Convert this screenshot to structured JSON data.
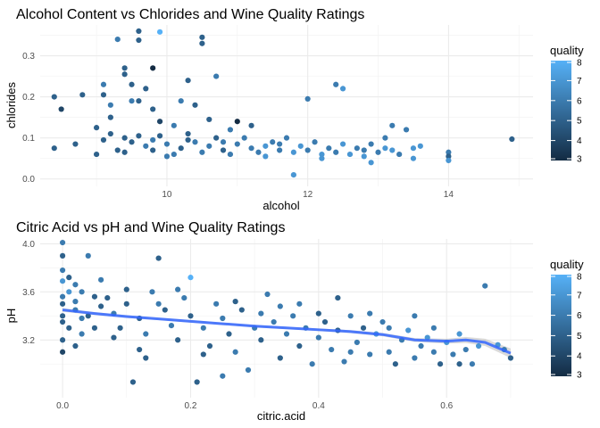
{
  "palette": {
    "low": "#132b43",
    "high": "#56b1f7",
    "smooth": "#3366ff",
    "band": "#bbbbbb"
  },
  "chart_data": [
    {
      "type": "scatter",
      "title": "Alcohol Content vs Chlorides and Wine Quality Ratings",
      "xlabel": "alcohol",
      "ylabel": "chlorides",
      "xlim": [
        8.2,
        15.2
      ],
      "ylim": [
        -0.018,
        0.375
      ],
      "x_ticks": [
        10,
        12,
        14
      ],
      "y_ticks": [
        0.0,
        0.1,
        0.2,
        0.3
      ],
      "x_tick_labels": [
        "10",
        "12",
        "14"
      ],
      "y_tick_labels": [
        "0.0",
        "0.1",
        "0.2",
        "0.3"
      ],
      "color_variable": "quality",
      "color_range": [
        3,
        8
      ],
      "legend": {
        "title": "quality",
        "ticks": [
          "8",
          "7",
          "6",
          "5",
          "4",
          "3"
        ],
        "position": "right"
      },
      "grid": true,
      "points": [
        {
          "x": 8.4,
          "y": 0.2,
          "q": 5
        },
        {
          "x": 8.4,
          "y": 0.075,
          "q": 5
        },
        {
          "x": 8.5,
          "y": 0.17,
          "q": 4
        },
        {
          "x": 8.7,
          "y": 0.085,
          "q": 5
        },
        {
          "x": 8.8,
          "y": 0.205,
          "q": 5
        },
        {
          "x": 9.0,
          "y": 0.125,
          "q": 5
        },
        {
          "x": 9.1,
          "y": 0.23,
          "q": 6
        },
        {
          "x": 9.1,
          "y": 0.205,
          "q": 5
        },
        {
          "x": 9.2,
          "y": 0.18,
          "q": 6
        },
        {
          "x": 9.3,
          "y": 0.34,
          "q": 6
        },
        {
          "x": 9.4,
          "y": 0.27,
          "q": 5
        },
        {
          "x": 9.4,
          "y": 0.255,
          "q": 5
        },
        {
          "x": 9.5,
          "y": 0.23,
          "q": 5
        },
        {
          "x": 9.6,
          "y": 0.36,
          "q": 5
        },
        {
          "x": 9.6,
          "y": 0.338,
          "q": 5
        },
        {
          "x": 9.5,
          "y": 0.19,
          "q": 6
        },
        {
          "x": 9.7,
          "y": 0.22,
          "q": 5
        },
        {
          "x": 9.8,
          "y": 0.17,
          "q": 5
        },
        {
          "x": 9.9,
          "y": 0.358,
          "q": 8
        },
        {
          "x": 9.8,
          "y": 0.27,
          "q": 3
        },
        {
          "x": 10.3,
          "y": 0.24,
          "q": 5
        },
        {
          "x": 10.5,
          "y": 0.345,
          "q": 5
        },
        {
          "x": 10.5,
          "y": 0.33,
          "q": 5
        },
        {
          "x": 10.7,
          "y": 0.25,
          "q": 6
        },
        {
          "x": 10.2,
          "y": 0.19,
          "q": 6
        },
        {
          "x": 10.4,
          "y": 0.18,
          "q": 5
        },
        {
          "x": 9.9,
          "y": 0.14,
          "q": 4
        },
        {
          "x": 10.1,
          "y": 0.13,
          "q": 6
        },
        {
          "x": 11.0,
          "y": 0.14,
          "q": 3
        },
        {
          "x": 11.2,
          "y": 0.13,
          "q": 5
        },
        {
          "x": 12.0,
          "y": 0.195,
          "q": 6
        },
        {
          "x": 12.4,
          "y": 0.23,
          "q": 6
        },
        {
          "x": 12.5,
          "y": 0.22,
          "q": 7
        },
        {
          "x": 13.1,
          "y": 0.1,
          "q": 6
        },
        {
          "x": 13.2,
          "y": 0.13,
          "q": 6
        },
        {
          "x": 13.4,
          "y": 0.12,
          "q": 6
        },
        {
          "x": 13.6,
          "y": 0.08,
          "q": 7
        },
        {
          "x": 14.0,
          "y": 0.065,
          "q": 6
        },
        {
          "x": 14.0,
          "y": 0.055,
          "q": 5
        },
        {
          "x": 14.0,
          "y": 0.045,
          "q": 7
        },
        {
          "x": 14.9,
          "y": 0.097,
          "q": 5
        },
        {
          "x": 11.8,
          "y": 0.01,
          "q": 7
        },
        {
          "x": 12.9,
          "y": 0.04,
          "q": 7
        },
        {
          "x": 13.5,
          "y": 0.05,
          "q": 7
        },
        {
          "x": 9.6,
          "y": 0.19,
          "q": 5
        },
        {
          "x": 10.6,
          "y": 0.145,
          "q": 5
        },
        {
          "x": 9.2,
          "y": 0.15,
          "q": 5
        },
        {
          "x": 10.9,
          "y": 0.12,
          "q": 6
        },
        {
          "x": 9.4,
          "y": 0.1,
          "q": 5
        },
        {
          "x": 9.5,
          "y": 0.09,
          "q": 5
        },
        {
          "x": 9.7,
          "y": 0.08,
          "q": 6
        },
        {
          "x": 9.8,
          "y": 0.07,
          "q": 5
        },
        {
          "x": 10.0,
          "y": 0.085,
          "q": 6
        },
        {
          "x": 10.2,
          "y": 0.075,
          "q": 5
        },
        {
          "x": 10.4,
          "y": 0.09,
          "q": 6
        },
        {
          "x": 10.6,
          "y": 0.08,
          "q": 6
        },
        {
          "x": 10.8,
          "y": 0.07,
          "q": 5
        },
        {
          "x": 11.0,
          "y": 0.085,
          "q": 6
        },
        {
          "x": 11.2,
          "y": 0.075,
          "q": 6
        },
        {
          "x": 11.4,
          "y": 0.08,
          "q": 7
        },
        {
          "x": 11.6,
          "y": 0.07,
          "q": 6
        },
        {
          "x": 11.8,
          "y": 0.065,
          "q": 7
        },
        {
          "x": 12.0,
          "y": 0.07,
          "q": 6
        },
        {
          "x": 12.2,
          "y": 0.06,
          "q": 7
        },
        {
          "x": 12.4,
          "y": 0.065,
          "q": 6
        },
        {
          "x": 12.6,
          "y": 0.06,
          "q": 7
        },
        {
          "x": 12.8,
          "y": 0.07,
          "q": 6
        },
        {
          "x": 13.0,
          "y": 0.065,
          "q": 6
        },
        {
          "x": 9.0,
          "y": 0.06,
          "q": 5
        },
        {
          "x": 9.2,
          "y": 0.11,
          "q": 5
        },
        {
          "x": 9.3,
          "y": 0.07,
          "q": 5
        },
        {
          "x": 9.9,
          "y": 0.105,
          "q": 5
        },
        {
          "x": 10.1,
          "y": 0.06,
          "q": 6
        },
        {
          "x": 10.3,
          "y": 0.11,
          "q": 5
        },
        {
          "x": 10.5,
          "y": 0.065,
          "q": 6
        },
        {
          "x": 10.7,
          "y": 0.1,
          "q": 5
        },
        {
          "x": 10.9,
          "y": 0.06,
          "q": 6
        },
        {
          "x": 11.1,
          "y": 0.1,
          "q": 6
        },
        {
          "x": 11.3,
          "y": 0.065,
          "q": 6
        },
        {
          "x": 11.5,
          "y": 0.09,
          "q": 6
        },
        {
          "x": 11.7,
          "y": 0.1,
          "q": 6
        },
        {
          "x": 11.9,
          "y": 0.08,
          "q": 7
        },
        {
          "x": 12.1,
          "y": 0.09,
          "q": 6
        },
        {
          "x": 12.3,
          "y": 0.075,
          "q": 6
        },
        {
          "x": 12.5,
          "y": 0.085,
          "q": 7
        },
        {
          "x": 12.7,
          "y": 0.075,
          "q": 6
        },
        {
          "x": 12.9,
          "y": 0.085,
          "q": 6
        },
        {
          "x": 13.1,
          "y": 0.075,
          "q": 7
        },
        {
          "x": 13.3,
          "y": 0.06,
          "q": 6
        },
        {
          "x": 13.5,
          "y": 0.075,
          "q": 7
        },
        {
          "x": 9.1,
          "y": 0.095,
          "q": 5
        },
        {
          "x": 9.6,
          "y": 0.105,
          "q": 5
        },
        {
          "x": 9.4,
          "y": 0.065,
          "q": 5
        },
        {
          "x": 10.0,
          "y": 0.055,
          "q": 6
        },
        {
          "x": 10.8,
          "y": 0.09,
          "q": 6
        },
        {
          "x": 11.4,
          "y": 0.055,
          "q": 7
        },
        {
          "x": 12.2,
          "y": 0.05,
          "q": 7
        },
        {
          "x": 12.8,
          "y": 0.055,
          "q": 7
        },
        {
          "x": 13.2,
          "y": 0.07,
          "q": 7
        },
        {
          "x": 10.3,
          "y": 0.095,
          "q": 5
        },
        {
          "x": 11.6,
          "y": 0.085,
          "q": 6
        },
        {
          "x": 9.8,
          "y": 0.095,
          "q": 6
        }
      ]
    },
    {
      "type": "scatter",
      "title": "Citric Acid vs pH and Wine Quality Ratings",
      "xlabel": "citric.acid",
      "ylabel": "pH",
      "xlim": [
        -0.035,
        0.735
      ],
      "ylim": [
        2.72,
        4.04
      ],
      "x_ticks": [
        0.0,
        0.2,
        0.4,
        0.6
      ],
      "y_ticks": [
        3.2,
        3.6,
        4.0
      ],
      "x_tick_labels": [
        "0.0",
        "0.2",
        "0.4",
        "0.6"
      ],
      "y_tick_labels": [
        "3.2",
        "3.6",
        "4.0"
      ],
      "color_variable": "quality",
      "color_range": [
        3,
        8
      ],
      "legend": {
        "title": "quality",
        "ticks": [
          "8",
          "7",
          "6",
          "5",
          "4",
          "3"
        ],
        "position": "right"
      },
      "grid": true,
      "smooth_line": {
        "x": [
          0.0,
          0.05,
          0.1,
          0.15,
          0.2,
          0.25,
          0.3,
          0.35,
          0.4,
          0.45,
          0.5,
          0.55,
          0.6,
          0.63,
          0.66,
          0.7
        ],
        "y": [
          3.45,
          3.42,
          3.395,
          3.375,
          3.355,
          3.335,
          3.315,
          3.3,
          3.285,
          3.27,
          3.245,
          3.2,
          3.19,
          3.2,
          3.18,
          3.09
        ],
        "band": [
          0.015,
          0.012,
          0.011,
          0.01,
          0.01,
          0.01,
          0.01,
          0.01,
          0.011,
          0.012,
          0.014,
          0.016,
          0.02,
          0.025,
          0.03,
          0.04
        ]
      },
      "points": [
        {
          "x": 0.0,
          "y": 4.01,
          "q": 6
        },
        {
          "x": 0.0,
          "y": 3.9,
          "q": 5
        },
        {
          "x": 0.04,
          "y": 3.9,
          "q": 6
        },
        {
          "x": 0.0,
          "y": 3.78,
          "q": 6
        },
        {
          "x": 0.01,
          "y": 3.72,
          "q": 5
        },
        {
          "x": 0.0,
          "y": 3.69,
          "q": 7
        },
        {
          "x": 0.02,
          "y": 3.66,
          "q": 6
        },
        {
          "x": 0.05,
          "y": 3.56,
          "q": 5
        },
        {
          "x": 0.03,
          "y": 3.6,
          "q": 6
        },
        {
          "x": 0.0,
          "y": 3.5,
          "q": 5
        },
        {
          "x": 0.02,
          "y": 3.45,
          "q": 6
        },
        {
          "x": 0.04,
          "y": 3.4,
          "q": 5
        },
        {
          "x": 0.0,
          "y": 3.35,
          "q": 5
        },
        {
          "x": 0.01,
          "y": 3.3,
          "q": 5
        },
        {
          "x": 0.03,
          "y": 3.25,
          "q": 6
        },
        {
          "x": 0.0,
          "y": 3.2,
          "q": 5
        },
        {
          "x": 0.02,
          "y": 3.15,
          "q": 5
        },
        {
          "x": 0.0,
          "y": 3.1,
          "q": 4
        },
        {
          "x": 0.05,
          "y": 3.3,
          "q": 5
        },
        {
          "x": 0.07,
          "y": 3.55,
          "q": 5
        },
        {
          "x": 0.08,
          "y": 3.42,
          "q": 6
        },
        {
          "x": 0.09,
          "y": 3.3,
          "q": 5
        },
        {
          "x": 0.1,
          "y": 3.5,
          "q": 5
        },
        {
          "x": 0.11,
          "y": 2.85,
          "q": 5
        },
        {
          "x": 0.12,
          "y": 3.38,
          "q": 5
        },
        {
          "x": 0.13,
          "y": 3.25,
          "q": 6
        },
        {
          "x": 0.14,
          "y": 3.6,
          "q": 6
        },
        {
          "x": 0.15,
          "y": 3.88,
          "q": 5
        },
        {
          "x": 0.16,
          "y": 3.45,
          "q": 5
        },
        {
          "x": 0.17,
          "y": 3.32,
          "q": 6
        },
        {
          "x": 0.18,
          "y": 3.2,
          "q": 5
        },
        {
          "x": 0.19,
          "y": 3.55,
          "q": 6
        },
        {
          "x": 0.2,
          "y": 3.4,
          "q": 5
        },
        {
          "x": 0.21,
          "y": 2.85,
          "q": 5
        },
        {
          "x": 0.22,
          "y": 3.3,
          "q": 6
        },
        {
          "x": 0.23,
          "y": 3.15,
          "q": 5
        },
        {
          "x": 0.24,
          "y": 3.5,
          "q": 6
        },
        {
          "x": 0.25,
          "y": 3.38,
          "q": 6
        },
        {
          "x": 0.26,
          "y": 3.25,
          "q": 5
        },
        {
          "x": 0.27,
          "y": 3.1,
          "q": 6
        },
        {
          "x": 0.28,
          "y": 3.45,
          "q": 5
        },
        {
          "x": 0.29,
          "y": 2.95,
          "q": 6
        },
        {
          "x": 0.3,
          "y": 3.3,
          "q": 6
        },
        {
          "x": 0.31,
          "y": 3.2,
          "q": 5
        },
        {
          "x": 0.32,
          "y": 3.58,
          "q": 6
        },
        {
          "x": 0.33,
          "y": 3.35,
          "q": 6
        },
        {
          "x": 0.34,
          "y": 3.05,
          "q": 5
        },
        {
          "x": 0.35,
          "y": 3.25,
          "q": 6
        },
        {
          "x": 0.36,
          "y": 3.4,
          "q": 6
        },
        {
          "x": 0.37,
          "y": 3.15,
          "q": 5
        },
        {
          "x": 0.38,
          "y": 3.3,
          "q": 6
        },
        {
          "x": 0.39,
          "y": 3.0,
          "q": 6
        },
        {
          "x": 0.4,
          "y": 3.22,
          "q": 6
        },
        {
          "x": 0.41,
          "y": 3.35,
          "q": 5
        },
        {
          "x": 0.42,
          "y": 3.12,
          "q": 6
        },
        {
          "x": 0.43,
          "y": 3.28,
          "q": 5
        },
        {
          "x": 0.44,
          "y": 3.02,
          "q": 6
        },
        {
          "x": 0.45,
          "y": 3.4,
          "q": 6
        },
        {
          "x": 0.46,
          "y": 3.18,
          "q": 6
        },
        {
          "x": 0.47,
          "y": 3.3,
          "q": 5
        },
        {
          "x": 0.48,
          "y": 3.08,
          "q": 6
        },
        {
          "x": 0.49,
          "y": 3.25,
          "q": 7
        },
        {
          "x": 0.5,
          "y": 3.35,
          "q": 6
        },
        {
          "x": 0.51,
          "y": 3.1,
          "q": 6
        },
        {
          "x": 0.52,
          "y": 3.0,
          "q": 5
        },
        {
          "x": 0.53,
          "y": 3.2,
          "q": 6
        },
        {
          "x": 0.54,
          "y": 3.28,
          "q": 7
        },
        {
          "x": 0.55,
          "y": 3.05,
          "q": 6
        },
        {
          "x": 0.56,
          "y": 3.15,
          "q": 6
        },
        {
          "x": 0.57,
          "y": 3.22,
          "q": 7
        },
        {
          "x": 0.58,
          "y": 3.1,
          "q": 6
        },
        {
          "x": 0.59,
          "y": 3.0,
          "q": 5
        },
        {
          "x": 0.6,
          "y": 3.18,
          "q": 7
        },
        {
          "x": 0.61,
          "y": 3.08,
          "q": 6
        },
        {
          "x": 0.62,
          "y": 3.25,
          "q": 7
        },
        {
          "x": 0.63,
          "y": 3.12,
          "q": 6
        },
        {
          "x": 0.64,
          "y": 3.0,
          "q": 6
        },
        {
          "x": 0.65,
          "y": 3.15,
          "q": 7
        },
        {
          "x": 0.66,
          "y": 3.65,
          "q": 6
        },
        {
          "x": 0.68,
          "y": 3.16,
          "q": 7
        },
        {
          "x": 0.69,
          "y": 3.12,
          "q": 6
        },
        {
          "x": 0.7,
          "y": 3.05,
          "q": 5
        },
        {
          "x": 0.62,
          "y": 3.0,
          "q": 5
        },
        {
          "x": 0.58,
          "y": 3.3,
          "q": 6
        },
        {
          "x": 0.06,
          "y": 3.7,
          "q": 6
        },
        {
          "x": 0.1,
          "y": 3.62,
          "q": 5
        },
        {
          "x": 0.13,
          "y": 3.05,
          "q": 5
        },
        {
          "x": 0.2,
          "y": 3.72,
          "q": 8
        },
        {
          "x": 0.25,
          "y": 2.9,
          "q": 6
        },
        {
          "x": 0.43,
          "y": 3.55,
          "q": 5
        },
        {
          "x": 0.0,
          "y": 3.56,
          "q": 6
        },
        {
          "x": 0.0,
          "y": 3.4,
          "q": 5
        },
        {
          "x": 0.01,
          "y": 3.6,
          "q": 7
        },
        {
          "x": 0.02,
          "y": 3.52,
          "q": 6
        },
        {
          "x": 0.03,
          "y": 3.38,
          "q": 6
        },
        {
          "x": 0.06,
          "y": 3.48,
          "q": 5
        },
        {
          "x": 0.08,
          "y": 3.22,
          "q": 5
        },
        {
          "x": 0.12,
          "y": 3.12,
          "q": 5
        },
        {
          "x": 0.15,
          "y": 3.5,
          "q": 6
        },
        {
          "x": 0.18,
          "y": 3.62,
          "q": 6
        },
        {
          "x": 0.22,
          "y": 3.08,
          "q": 5
        },
        {
          "x": 0.27,
          "y": 3.52,
          "q": 5
        },
        {
          "x": 0.31,
          "y": 3.42,
          "q": 6
        },
        {
          "x": 0.34,
          "y": 3.48,
          "q": 6
        },
        {
          "x": 0.37,
          "y": 3.5,
          "q": 6
        },
        {
          "x": 0.4,
          "y": 3.42,
          "q": 5
        },
        {
          "x": 0.45,
          "y": 3.1,
          "q": 6
        },
        {
          "x": 0.48,
          "y": 3.42,
          "q": 6
        },
        {
          "x": 0.51,
          "y": 3.3,
          "q": 6
        },
        {
          "x": 0.55,
          "y": 3.4,
          "q": 6
        }
      ]
    }
  ]
}
